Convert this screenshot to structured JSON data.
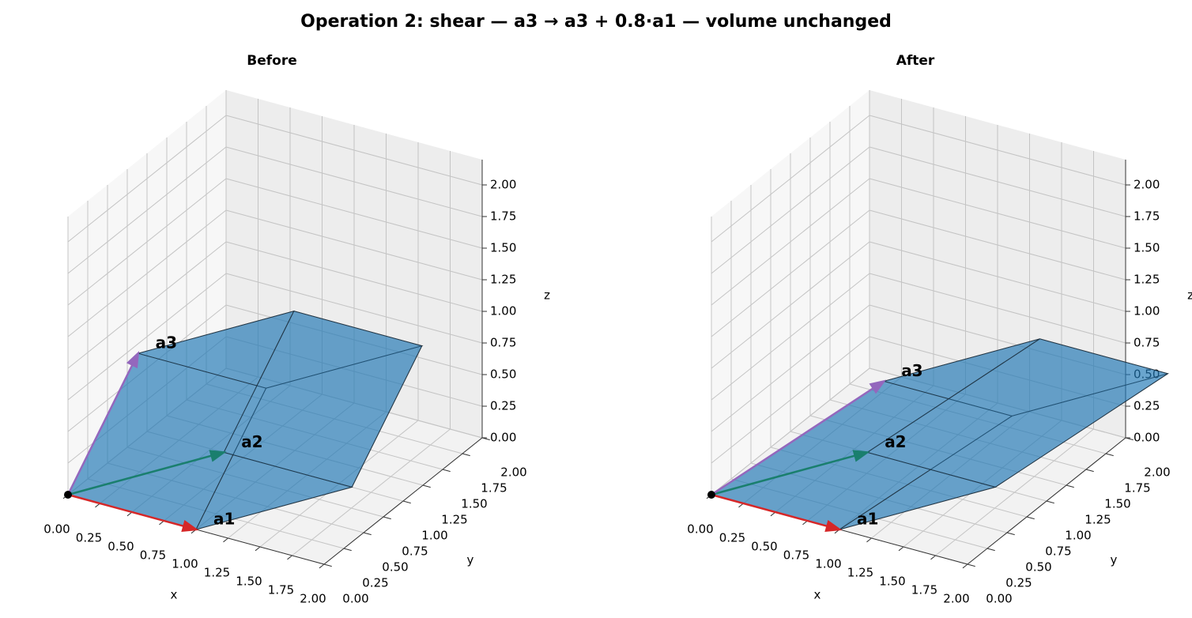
{
  "title": "Operation 2: shear — a3 → a3 + 0.8·a1 — volume unchanged",
  "chart_data": [
    {
      "type": "parallelepiped3d",
      "title": "Before",
      "xlabel": "x",
      "ylabel": "y",
      "zlabel": "z",
      "xlim": [
        0,
        2
      ],
      "ylim": [
        0,
        2
      ],
      "zlim": [
        0,
        2.2
      ],
      "face_color": "#1f77b4",
      "xticks": [
        {
          "value": 0,
          "label": "0.00"
        },
        {
          "value": 0.25,
          "label": "0.25"
        },
        {
          "value": 0.5,
          "label": "0.50"
        },
        {
          "value": 0.75,
          "label": "0.75"
        },
        {
          "value": 1,
          "label": "1.00"
        },
        {
          "value": 1.25,
          "label": "1.25"
        },
        {
          "value": 1.5,
          "label": "1.50"
        },
        {
          "value": 1.75,
          "label": "1.75"
        },
        {
          "value": 2,
          "label": "2.00"
        }
      ],
      "yticks": [
        {
          "value": 0,
          "label": "0.00"
        },
        {
          "value": 0.25,
          "label": "0.25"
        },
        {
          "value": 0.5,
          "label": "0.50"
        },
        {
          "value": 0.75,
          "label": "0.75"
        },
        {
          "value": 1,
          "label": "1.00"
        },
        {
          "value": 1.25,
          "label": "1.25"
        },
        {
          "value": 1.5,
          "label": "1.50"
        },
        {
          "value": 1.75,
          "label": "1.75"
        },
        {
          "value": 2,
          "label": "2.00"
        }
      ],
      "zticks": [
        {
          "value": 0,
          "label": "0.00"
        },
        {
          "value": 0.25,
          "label": "0.25"
        },
        {
          "value": 0.5,
          "label": "0.50"
        },
        {
          "value": 0.75,
          "label": "0.75"
        },
        {
          "value": 1,
          "label": "1.00"
        },
        {
          "value": 1.25,
          "label": "1.25"
        },
        {
          "value": 1.5,
          "label": "1.50"
        },
        {
          "value": 1.75,
          "label": "1.75"
        },
        {
          "value": 2,
          "label": "2.00"
        }
      ],
      "series": [
        {
          "name": "a1",
          "color": "#d62728",
          "values": [
            1,
            0,
            0
          ]
        },
        {
          "name": "a2",
          "color": "#1a7f6e",
          "values": [
            0.6,
            1,
            0
          ]
        },
        {
          "name": "a3",
          "color": "#9467bd",
          "values": [
            0.3,
            0.4,
            1
          ]
        }
      ]
    },
    {
      "type": "parallelepiped3d",
      "title": "After",
      "xlabel": "x",
      "ylabel": "y",
      "zlabel": "z",
      "xlim": [
        0,
        2
      ],
      "ylim": [
        0,
        2
      ],
      "zlim": [
        0,
        2.2
      ],
      "face_color": "#1f77b4",
      "xticks": [
        {
          "value": 0,
          "label": "0.00"
        },
        {
          "value": 0.25,
          "label": "0.25"
        },
        {
          "value": 0.5,
          "label": "0.50"
        },
        {
          "value": 0.75,
          "label": "0.75"
        },
        {
          "value": 1,
          "label": "1.00"
        },
        {
          "value": 1.25,
          "label": "1.25"
        },
        {
          "value": 1.5,
          "label": "1.50"
        },
        {
          "value": 1.75,
          "label": "1.75"
        },
        {
          "value": 2,
          "label": "2.00"
        }
      ],
      "yticks": [
        {
          "value": 0,
          "label": "0.00"
        },
        {
          "value": 0.25,
          "label": "0.25"
        },
        {
          "value": 0.5,
          "label": "0.50"
        },
        {
          "value": 0.75,
          "label": "0.75"
        },
        {
          "value": 1,
          "label": "1.00"
        },
        {
          "value": 1.25,
          "label": "1.25"
        },
        {
          "value": 1.5,
          "label": "1.50"
        },
        {
          "value": 1.75,
          "label": "1.75"
        },
        {
          "value": 2,
          "label": "2.00"
        }
      ],
      "zticks": [
        {
          "value": 0,
          "label": "0.00"
        },
        {
          "value": 0.25,
          "label": "0.25"
        },
        {
          "value": 0.5,
          "label": "0.50"
        },
        {
          "value": 0.75,
          "label": "0.75"
        },
        {
          "value": 1,
          "label": "1.00"
        },
        {
          "value": 1.25,
          "label": "1.25"
        },
        {
          "value": 1.5,
          "label": "1.50"
        },
        {
          "value": 1.75,
          "label": "1.75"
        },
        {
          "value": 2,
          "label": "2.00"
        }
      ],
      "series": [
        {
          "name": "a1",
          "color": "#d62728",
          "values": [
            1,
            0,
            0
          ]
        },
        {
          "name": "a2",
          "color": "#1a7f6e",
          "values": [
            0.6,
            1,
            0
          ]
        },
        {
          "name": "a3",
          "color": "#9467bd",
          "values": [
            1.1,
            0.4,
            1
          ]
        }
      ]
    }
  ]
}
